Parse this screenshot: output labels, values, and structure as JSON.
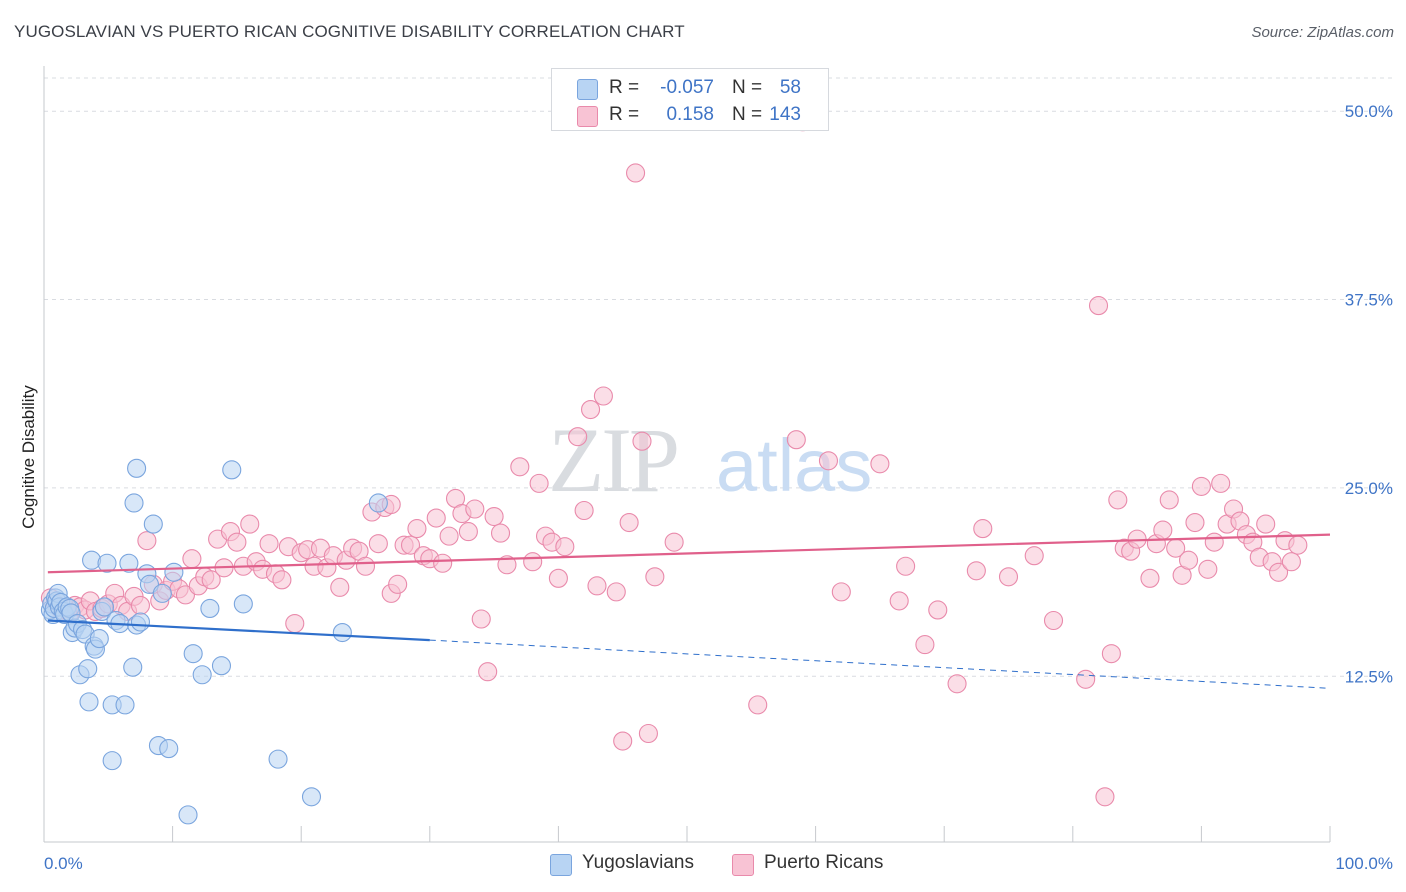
{
  "header": {
    "title": "YUGOSLAVIAN VS PUERTO RICAN COGNITIVE DISABILITY CORRELATION CHART",
    "source": "Source: ZipAtlas.com"
  },
  "watermark": "ZIPatlas",
  "legend": {
    "rows": [
      {
        "r_label": "R =",
        "r_value": "-0.057",
        "n_label": "N =",
        "n_value": "58",
        "color": "#b8d4f3",
        "border": "#7aa5de"
      },
      {
        "r_label": "R =",
        "r_value": "0.158",
        "n_label": "N =",
        "n_value": "143",
        "color": "#f8c3d4",
        "border": "#e98aab"
      }
    ]
  },
  "bottom_legend": {
    "items": [
      {
        "label": "Yugoslavians",
        "color": "#b8d4f3",
        "border": "#7aa5de"
      },
      {
        "label": "Puerto Ricans",
        "color": "#f8c3d4",
        "border": "#e98aab"
      }
    ]
  },
  "chart_data": {
    "type": "scatter",
    "title": "YUGOSLAVIAN VS PUERTO RICAN COGNITIVE DISABILITY CORRELATION CHART",
    "xlabel": "",
    "ylabel": "Cognitive Disability",
    "xlim": [
      0,
      100
    ],
    "ylim": [
      1.5,
      53.0
    ],
    "x_ticks": [
      0,
      100
    ],
    "x_tick_labels": [
      "0.0%",
      "100.0%"
    ],
    "y_ticks": [
      12.5,
      25.0,
      37.5,
      50.0
    ],
    "y_tick_labels": [
      "12.5%",
      "25.0%",
      "37.5%",
      "50.0%"
    ],
    "grid": true,
    "legend_position": "top-center",
    "series": [
      {
        "name": "Yugoslavians",
        "color": "#7aa5de",
        "fill": "#b8d4f3",
        "line_color": "#2f6fcb",
        "trend": {
          "x0": 0.3,
          "y0": 16.2,
          "x1": 30.0,
          "y1": 14.9,
          "dashed_to_x": 100,
          "dashed_to_y": 11.7
        },
        "points": [
          [
            0.5,
            16.9
          ],
          [
            0.6,
            17.3
          ],
          [
            0.7,
            16.6
          ],
          [
            0.8,
            17.0
          ],
          [
            0.9,
            17.7
          ],
          [
            1.0,
            17.5
          ],
          [
            1.1,
            18.0
          ],
          [
            1.2,
            17.1
          ],
          [
            1.3,
            17.4
          ],
          [
            1.5,
            16.8
          ],
          [
            1.6,
            16.6
          ],
          [
            1.8,
            17.1
          ],
          [
            2.0,
            17.0
          ],
          [
            2.1,
            16.7
          ],
          [
            2.2,
            15.4
          ],
          [
            2.4,
            15.7
          ],
          [
            2.6,
            16.0
          ],
          [
            2.8,
            12.6
          ],
          [
            3.0,
            15.6
          ],
          [
            3.2,
            15.3
          ],
          [
            3.4,
            13.0
          ],
          [
            3.5,
            10.8
          ],
          [
            3.7,
            20.2
          ],
          [
            3.9,
            14.5
          ],
          [
            4.0,
            14.3
          ],
          [
            4.3,
            15.0
          ],
          [
            4.5,
            16.8
          ],
          [
            4.7,
            17.1
          ],
          [
            4.9,
            20.0
          ],
          [
            5.3,
            10.6
          ],
          [
            5.6,
            16.2
          ],
          [
            5.9,
            16.0
          ],
          [
            6.3,
            10.6
          ],
          [
            6.6,
            20.0
          ],
          [
            6.9,
            13.1
          ],
          [
            7.2,
            15.9
          ],
          [
            7.5,
            16.1
          ],
          [
            8.0,
            19.3
          ],
          [
            8.2,
            18.6
          ],
          [
            8.5,
            22.6
          ],
          [
            8.9,
            7.9
          ],
          [
            9.2,
            18.0
          ],
          [
            9.7,
            7.7
          ],
          [
            10.1,
            19.4
          ],
          [
            11.2,
            3.3
          ],
          [
            11.6,
            14.0
          ],
          [
            12.3,
            12.6
          ],
          [
            12.9,
            17.0
          ],
          [
            13.8,
            13.2
          ],
          [
            14.6,
            26.2
          ],
          [
            15.5,
            17.3
          ],
          [
            18.2,
            7.0
          ],
          [
            20.8,
            4.5
          ],
          [
            23.2,
            15.4
          ],
          [
            26.0,
            24.0
          ],
          [
            7.0,
            24.0
          ],
          [
            7.2,
            26.3
          ],
          [
            5.3,
            6.9
          ]
        ]
      },
      {
        "name": "Puerto Ricans",
        "color": "#e98aab",
        "fill": "#f8c3d4",
        "line_color": "#e0608b",
        "trend": {
          "x0": 0.3,
          "y0": 19.4,
          "x1": 100,
          "y1": 21.9
        },
        "points": [
          [
            0.5,
            17.7
          ],
          [
            0.9,
            17.3
          ],
          [
            1.3,
            16.9
          ],
          [
            1.7,
            17.0
          ],
          [
            2.0,
            16.7
          ],
          [
            2.4,
            17.2
          ],
          [
            2.8,
            17.1
          ],
          [
            3.2,
            16.9
          ],
          [
            3.6,
            17.5
          ],
          [
            4.0,
            16.8
          ],
          [
            4.5,
            17.0
          ],
          [
            5.0,
            17.3
          ],
          [
            5.5,
            18.0
          ],
          [
            6.0,
            17.2
          ],
          [
            6.5,
            16.8
          ],
          [
            7.0,
            17.8
          ],
          [
            7.5,
            17.2
          ],
          [
            8.0,
            21.5
          ],
          [
            8.5,
            18.6
          ],
          [
            9.0,
            17.5
          ],
          [
            9.5,
            18.2
          ],
          [
            10.0,
            18.8
          ],
          [
            10.5,
            18.3
          ],
          [
            11.0,
            17.9
          ],
          [
            11.5,
            20.3
          ],
          [
            12.0,
            18.5
          ],
          [
            12.5,
            19.1
          ],
          [
            13.0,
            18.9
          ],
          [
            13.5,
            21.6
          ],
          [
            14.0,
            19.7
          ],
          [
            14.5,
            22.1
          ],
          [
            15.0,
            21.4
          ],
          [
            15.5,
            19.8
          ],
          [
            16.0,
            22.6
          ],
          [
            16.5,
            20.1
          ],
          [
            17.0,
            19.6
          ],
          [
            17.5,
            21.3
          ],
          [
            18.0,
            19.3
          ],
          [
            18.5,
            18.9
          ],
          [
            19.0,
            21.1
          ],
          [
            19.5,
            16.0
          ],
          [
            20.0,
            20.7
          ],
          [
            20.5,
            20.9
          ],
          [
            21.0,
            19.8
          ],
          [
            21.5,
            21.0
          ],
          [
            22.0,
            19.7
          ],
          [
            22.5,
            20.5
          ],
          [
            23.0,
            18.4
          ],
          [
            23.5,
            20.2
          ],
          [
            24.0,
            21.0
          ],
          [
            24.5,
            20.8
          ],
          [
            25.0,
            19.8
          ],
          [
            25.5,
            23.4
          ],
          [
            26.0,
            21.3
          ],
          [
            26.5,
            23.7
          ],
          [
            27.0,
            18.0
          ],
          [
            27.5,
            18.6
          ],
          [
            28.0,
            21.2
          ],
          [
            28.5,
            21.2
          ],
          [
            29.0,
            22.3
          ],
          [
            29.5,
            20.5
          ],
          [
            30.0,
            20.3
          ],
          [
            30.5,
            23.0
          ],
          [
            31.0,
            20.0
          ],
          [
            31.5,
            21.8
          ],
          [
            32.0,
            24.3
          ],
          [
            32.5,
            23.3
          ],
          [
            33.0,
            22.1
          ],
          [
            33.5,
            23.6
          ],
          [
            34.0,
            16.3
          ],
          [
            34.5,
            12.8
          ],
          [
            35.0,
            23.1
          ],
          [
            35.5,
            22.0
          ],
          [
            36.0,
            19.9
          ],
          [
            37.0,
            26.4
          ],
          [
            38.0,
            20.1
          ],
          [
            38.5,
            25.3
          ],
          [
            39.0,
            21.8
          ],
          [
            39.5,
            21.4
          ],
          [
            40.0,
            19.0
          ],
          [
            40.5,
            21.1
          ],
          [
            41.5,
            28.4
          ],
          [
            42.0,
            23.5
          ],
          [
            42.5,
            30.2
          ],
          [
            43.0,
            18.5
          ],
          [
            43.5,
            31.1
          ],
          [
            44.5,
            18.1
          ],
          [
            45.0,
            8.2
          ],
          [
            45.5,
            22.7
          ],
          [
            46.0,
            45.9
          ],
          [
            46.5,
            28.1
          ],
          [
            47.0,
            8.7
          ],
          [
            47.5,
            19.1
          ],
          [
            49.0,
            21.4
          ],
          [
            55.5,
            10.6
          ],
          [
            58.5,
            28.2
          ],
          [
            61.0,
            26.8
          ],
          [
            62.0,
            18.1
          ],
          [
            65.0,
            26.6
          ],
          [
            66.5,
            17.5
          ],
          [
            67.0,
            19.8
          ],
          [
            68.5,
            14.6
          ],
          [
            69.5,
            16.9
          ],
          [
            71.0,
            12.0
          ],
          [
            72.5,
            19.5
          ],
          [
            73.0,
            22.3
          ],
          [
            75.0,
            19.1
          ],
          [
            77.0,
            20.5
          ],
          [
            78.5,
            16.2
          ],
          [
            81.0,
            12.3
          ],
          [
            82.0,
            37.1
          ],
          [
            82.5,
            4.5
          ],
          [
            83.0,
            14.0
          ],
          [
            83.5,
            24.2
          ],
          [
            84.0,
            21.0
          ],
          [
            84.5,
            20.8
          ],
          [
            85.0,
            21.6
          ],
          [
            86.0,
            19.0
          ],
          [
            86.5,
            21.3
          ],
          [
            87.0,
            22.2
          ],
          [
            87.5,
            24.2
          ],
          [
            88.0,
            21.0
          ],
          [
            88.5,
            19.2
          ],
          [
            89.0,
            20.2
          ],
          [
            89.5,
            22.7
          ],
          [
            90.0,
            25.1
          ],
          [
            90.5,
            19.6
          ],
          [
            91.0,
            21.4
          ],
          [
            91.5,
            25.3
          ],
          [
            92.0,
            22.6
          ],
          [
            92.5,
            23.6
          ],
          [
            93.0,
            22.8
          ],
          [
            93.5,
            21.9
          ],
          [
            94.0,
            21.4
          ],
          [
            94.5,
            20.4
          ],
          [
            95.0,
            22.6
          ],
          [
            95.5,
            20.1
          ],
          [
            96.0,
            19.4
          ],
          [
            96.5,
            21.5
          ],
          [
            97.0,
            20.1
          ],
          [
            97.5,
            21.2
          ],
          [
            27.0,
            23.9
          ],
          [
            59.0,
            49.3
          ]
        ]
      }
    ]
  }
}
